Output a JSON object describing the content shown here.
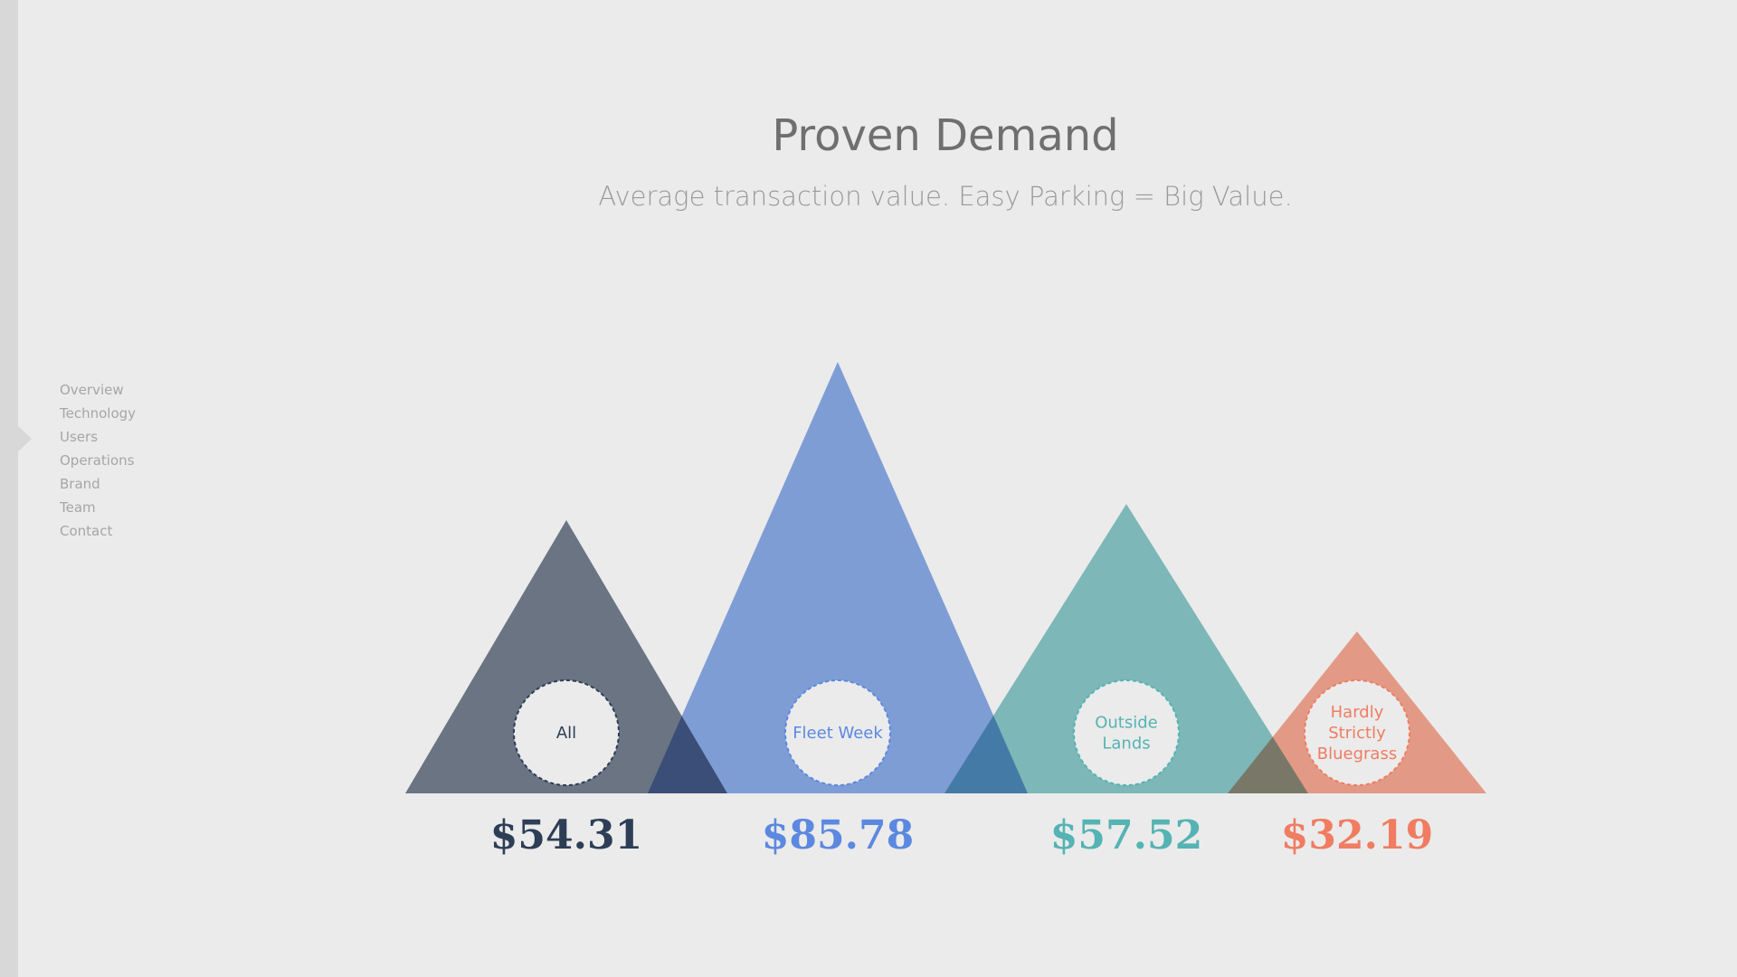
{
  "nav": {
    "items": [
      "Overview",
      "Technology",
      "Users",
      "Operations",
      "Brand",
      "Team",
      "Contact"
    ]
  },
  "header": {
    "title": "Proven Demand",
    "subtitle": "Average transaction value. Easy Parking = Big Value."
  },
  "colors": {
    "background": "#ebebeb",
    "title": "#6f6f6f",
    "subtitle": "#9a9a9a",
    "nav_text": "#a6a6a6"
  },
  "chart_data": {
    "type": "bar",
    "categories": [
      [
        "All"
      ],
      [
        "Fleet Week"
      ],
      [
        "Outside",
        "Lands"
      ],
      [
        "Hardly",
        "Strictly",
        "Bluegrass"
      ]
    ],
    "values": [
      54.31,
      85.78,
      57.52,
      32.19
    ],
    "value_labels": [
      "$54.31",
      "$85.78",
      "$57.52",
      "$32.19"
    ],
    "mark_shape": "triangle",
    "fill_colors": [
      "#6b7788",
      "#84a7e6",
      "#82c4c4",
      "#f5a28b"
    ],
    "text_colors": [
      "#2d3e55",
      "#5c88e0",
      "#55b3b3",
      "#f07c62"
    ],
    "ylim": [
      0,
      85.78
    ],
    "title": "",
    "xlabel": "",
    "ylabel": ""
  }
}
